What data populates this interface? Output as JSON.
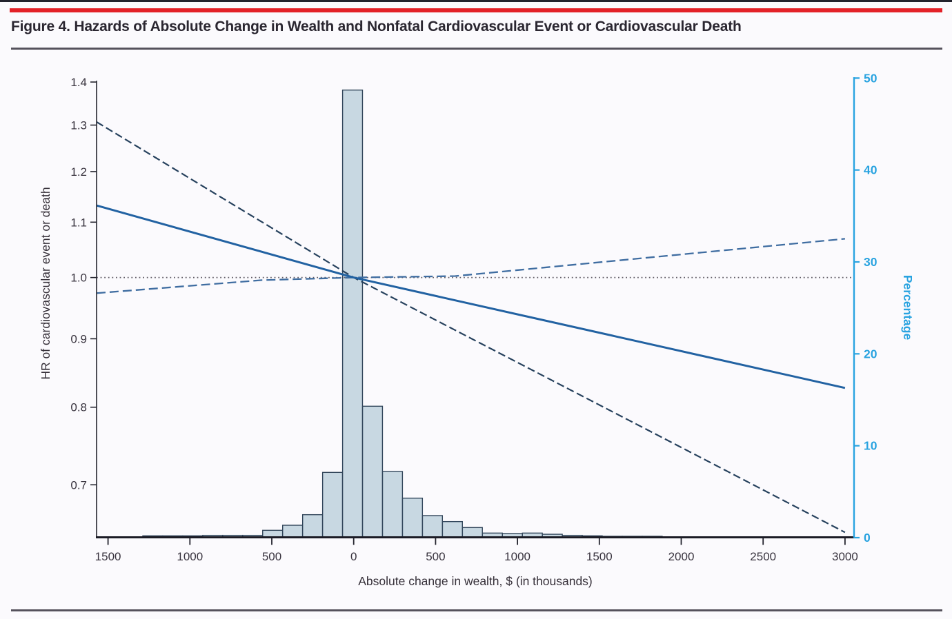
{
  "title": "Figure 4. Hazards of Absolute Change in Wealth and Nonfatal Cardiovascular Event or Cardiovascular Death",
  "colors": {
    "accent_red_bar": "#e32128",
    "title_text": "#2b2731",
    "rule": "#55525c",
    "axis_dark": "#23232d",
    "tick_label": "#39343f",
    "axis_title": "#363039",
    "cyan_axis": "#29a3e0",
    "histogram_fill": "#c8d8e2",
    "histogram_stroke": "#31455a",
    "hr_line": "#2262a2",
    "ci_steep_line": "#26415d",
    "ci_shallow_line": "#3f6da1",
    "reference_dotted": "#615d66",
    "background": "#fbfafd"
  },
  "chart_data": {
    "type": "line+histogram combo",
    "title": "Hazards of Absolute Change in Wealth and Nonfatal Cardiovascular Event or Cardiovascular Death",
    "x_axis": {
      "label": "Absolute change in wealth, $ (in thousands)",
      "ticks": [
        -1500,
        -1000,
        -500,
        0,
        500,
        1000,
        1500,
        2000,
        2500,
        3000
      ],
      "tick_labels": [
        "1500",
        "1000",
        "500",
        "0",
        "500",
        "1000",
        "1500",
        "2000",
        "2500",
        "3000"
      ],
      "range": [
        -1570,
        3055
      ]
    },
    "y_left_axis": {
      "label": "HR of cardiovascular event or death",
      "scale": "log",
      "ticks": [
        1.4,
        1.3,
        1.2,
        1.1,
        1.0,
        0.9,
        0.8,
        0.7
      ],
      "range": [
        0.64,
        1.4
      ]
    },
    "y_right_axis": {
      "label": "Percentage",
      "scale": "linear",
      "ticks": [
        0,
        10,
        20,
        30,
        40,
        50
      ],
      "range": [
        0,
        50
      ]
    },
    "reference_line": {
      "y": 1.0,
      "style": "dotted",
      "axis": "left"
    },
    "histogram": {
      "axis": "right",
      "unit": "percentage",
      "bin_width": 122,
      "bars": [
        {
          "center": -1227,
          "pct": 0.2
        },
        {
          "center": -1105,
          "pct": 0.2
        },
        {
          "center": -983,
          "pct": 0.2
        },
        {
          "center": -861,
          "pct": 0.25
        },
        {
          "center": -739,
          "pct": 0.25
        },
        {
          "center": -617,
          "pct": 0.25
        },
        {
          "center": -495,
          "pct": 0.8
        },
        {
          "center": -373,
          "pct": 1.35
        },
        {
          "center": -251,
          "pct": 2.5
        },
        {
          "center": -129,
          "pct": 7.1
        },
        {
          "center": -7,
          "pct": 48.7
        },
        {
          "center": 115,
          "pct": 14.3
        },
        {
          "center": 237,
          "pct": 7.2
        },
        {
          "center": 359,
          "pct": 4.3
        },
        {
          "center": 481,
          "pct": 2.4
        },
        {
          "center": 603,
          "pct": 1.75
        },
        {
          "center": 725,
          "pct": 1.1
        },
        {
          "center": 847,
          "pct": 0.5
        },
        {
          "center": 969,
          "pct": 0.45
        },
        {
          "center": 1091,
          "pct": 0.5
        },
        {
          "center": 1213,
          "pct": 0.37
        },
        {
          "center": 1335,
          "pct": 0.25
        },
        {
          "center": 1457,
          "pct": 0.2
        },
        {
          "center": 1579,
          "pct": 0.15
        },
        {
          "center": 1701,
          "pct": 0.15
        },
        {
          "center": 1823,
          "pct": 0.15
        }
      ]
    },
    "series": [
      {
        "name": "hr-estimate",
        "style": "solid",
        "axis": "left",
        "points": [
          [
            -1570,
            1.132
          ],
          [
            0,
            1.0
          ],
          [
            3000,
            0.827
          ]
        ]
      },
      {
        "name": "ci-bound-steep",
        "style": "dashed-dark",
        "axis": "left",
        "points": [
          [
            -1570,
            1.307
          ],
          [
            0,
            1.0
          ],
          [
            3000,
            0.645
          ]
        ]
      },
      {
        "name": "ci-bound-shallow",
        "style": "dashed-light",
        "axis": "left",
        "points": [
          [
            -1570,
            0.9735
          ],
          [
            -560,
            0.9955
          ],
          [
            0,
            1.0
          ],
          [
            620,
            1.0025
          ],
          [
            3000,
            1.069
          ]
        ]
      }
    ],
    "legend": null,
    "grid": false
  }
}
